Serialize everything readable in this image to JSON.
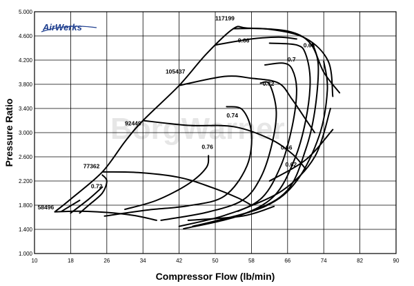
{
  "chart_data": {
    "type": "line",
    "title": "",
    "xlabel": "Compressor Flow (lb/min)",
    "ylabel": "Pressure Ratio",
    "xlim": [
      10,
      90
    ],
    "ylim": [
      1.0,
      5.0
    ],
    "x_ticks": [
      "10",
      "18",
      "26",
      "34",
      "42",
      "50",
      "58",
      "66",
      "74",
      "82",
      "90"
    ],
    "y_ticks": [
      "1.000",
      "1.400",
      "1.800",
      "2.200",
      "2.600",
      "3.000",
      "3.400",
      "3.800",
      "4.200",
      "4.600",
      "5.000"
    ],
    "grid": true,
    "logo_text": "AirWerks",
    "watermark": "BorgWarner",
    "surge_line": [
      [
        14.5,
        1.69
      ],
      [
        18,
        1.9
      ],
      [
        25,
        2.35
      ],
      [
        30,
        2.85
      ],
      [
        34,
        3.2
      ],
      [
        42,
        3.78
      ],
      [
        48,
        4.3
      ],
      [
        54,
        4.72
      ],
      [
        57,
        4.73
      ],
      [
        66,
        4.68
      ],
      [
        71,
        4.48
      ],
      [
        74,
        4.0
      ],
      [
        77.5,
        3.66
      ]
    ],
    "speed_lines": [
      {
        "label": "58496",
        "points": [
          [
            14.5,
            1.69
          ],
          [
            20,
            1.7
          ],
          [
            26,
            1.68
          ],
          [
            32,
            1.63
          ],
          [
            37,
            1.55
          ]
        ]
      },
      {
        "label": "77362",
        "points": [
          [
            25,
            2.35
          ],
          [
            33,
            2.34
          ],
          [
            42,
            2.26
          ],
          [
            49,
            2.1
          ],
          [
            55,
            1.92
          ],
          [
            58,
            1.8
          ]
        ]
      },
      {
        "label": "92449",
        "points": [
          [
            34,
            3.2
          ],
          [
            44,
            3.12
          ],
          [
            54,
            3.1
          ],
          [
            62,
            2.9
          ],
          [
            67,
            2.65
          ],
          [
            70,
            2.4
          ]
        ]
      },
      {
        "label": "105437",
        "points": [
          [
            42,
            3.78
          ],
          [
            52,
            3.93
          ],
          [
            58,
            3.9
          ],
          [
            64,
            3.82
          ],
          [
            67,
            3.55
          ],
          [
            70,
            3.22
          ],
          [
            72,
            3.0
          ]
        ]
      },
      {
        "label": "117199",
        "points": [
          [
            54,
            4.72
          ],
          [
            62,
            4.71
          ],
          [
            70,
            4.56
          ],
          [
            75,
            4.18
          ],
          [
            76,
            3.6
          ]
        ]
      }
    ],
    "efficiency_islands": [
      {
        "label": "0.76",
        "points": [
          [
            30,
            1.73
          ],
          [
            37,
            1.88
          ],
          [
            44,
            2.15
          ],
          [
            48,
            2.42
          ],
          [
            48.5,
            2.62
          ]
        ]
      },
      {
        "label": "0.74",
        "points": [
          [
            25.5,
            1.62
          ],
          [
            35,
            1.72
          ],
          [
            44,
            1.79
          ],
          [
            52,
            1.95
          ],
          [
            57,
            2.45
          ],
          [
            58,
            3.0
          ],
          [
            56,
            3.38
          ],
          [
            52.5,
            3.43
          ]
        ]
      },
      {
        "label": "0.72",
        "points": [
          [
            20,
            1.67
          ],
          [
            22,
            1.8
          ],
          [
            25,
            2.0
          ],
          [
            26,
            2.2
          ],
          [
            25,
            2.3
          ]
        ]
      },
      {
        "label": "0.72",
        "points": [
          [
            38,
            1.55
          ],
          [
            48,
            1.68
          ],
          [
            56,
            1.88
          ],
          [
            60,
            2.25
          ],
          [
            62.5,
            2.8
          ],
          [
            63.5,
            3.35
          ],
          [
            62,
            3.8
          ],
          [
            60,
            3.82
          ]
        ]
      },
      {
        "label": "0.7",
        "points": [
          [
            42,
            1.45
          ],
          [
            52,
            1.63
          ],
          [
            60,
            1.9
          ],
          [
            64.5,
            2.45
          ],
          [
            67,
            3.1
          ],
          [
            68,
            3.7
          ],
          [
            67,
            4.05
          ],
          [
            65,
            4.15
          ],
          [
            61,
            4.12
          ]
        ]
      },
      {
        "label": "0.68",
        "points": [
          [
            43,
            1.41
          ],
          [
            55,
            1.62
          ],
          [
            63,
            1.95
          ],
          [
            67.5,
            2.55
          ],
          [
            70,
            3.2
          ],
          [
            71,
            3.85
          ],
          [
            70,
            4.3
          ],
          [
            68,
            4.45
          ],
          [
            62,
            4.48
          ]
        ]
      },
      {
        "label": "0.66",
        "points": [
          [
            45,
            1.45
          ],
          [
            58,
            1.7
          ],
          [
            66,
            2.05
          ],
          [
            70,
            2.72
          ],
          [
            72,
            3.35
          ],
          [
            72.8,
            4.1
          ],
          [
            71.5,
            4.48
          ]
        ]
      },
      {
        "label": "0.66",
        "points": [
          [
            50,
            4.45
          ],
          [
            58,
            4.55
          ],
          [
            64,
            4.58
          ],
          [
            68,
            4.55
          ]
        ]
      },
      {
        "label": "0.62",
        "points": [
          [
            48,
            1.5
          ],
          [
            61,
            1.78
          ],
          [
            68,
            2.2
          ],
          [
            73,
            2.95
          ],
          [
            74.8,
            3.7
          ],
          [
            74,
            4.18
          ]
        ]
      }
    ],
    "extra_lines": [
      [
        [
          44,
          1.55
        ],
        [
          56,
          1.62
        ],
        [
          63,
          1.78
        ]
      ],
      [
        [
          55,
          1.7
        ],
        [
          65,
          2.05
        ],
        [
          72,
          2.6
        ],
        [
          75.5,
          3.4
        ]
      ],
      [
        [
          62,
          2.2
        ],
        [
          70,
          2.55
        ],
        [
          76,
          3.05
        ]
      ],
      [
        [
          18,
          1.67
        ],
        [
          22,
          1.9
        ],
        [
          25,
          2.1
        ]
      ],
      [
        [
          16,
          1.7
        ],
        [
          20,
          1.88
        ]
      ]
    ],
    "label_positions": [
      {
        "text": "58496",
        "x": 10.7,
        "y": 1.73
      },
      {
        "text": "77362",
        "x": 20.8,
        "y": 2.41
      },
      {
        "text": "92449",
        "x": 30.0,
        "y": 3.12
      },
      {
        "text": "105437",
        "x": 39.0,
        "y": 3.98
      },
      {
        "text": "117199",
        "x": 50.0,
        "y": 4.86
      },
      {
        "text": "0.72",
        "x": 22.5,
        "y": 2.08
      },
      {
        "text": "0.76",
        "x": 47.0,
        "y": 2.73
      },
      {
        "text": "0.74",
        "x": 52.5,
        "y": 3.25
      },
      {
        "text": "0.72",
        "x": 60.5,
        "y": 3.78
      },
      {
        "text": "0.7",
        "x": 66.0,
        "y": 4.18
      },
      {
        "text": "0.66",
        "x": 55.0,
        "y": 4.49
      },
      {
        "text": "0.68",
        "x": 69.5,
        "y": 4.41
      },
      {
        "text": "0.66",
        "x": 64.5,
        "y": 2.72
      },
      {
        "text": "0.62",
        "x": 65.5,
        "y": 2.44
      }
    ]
  }
}
